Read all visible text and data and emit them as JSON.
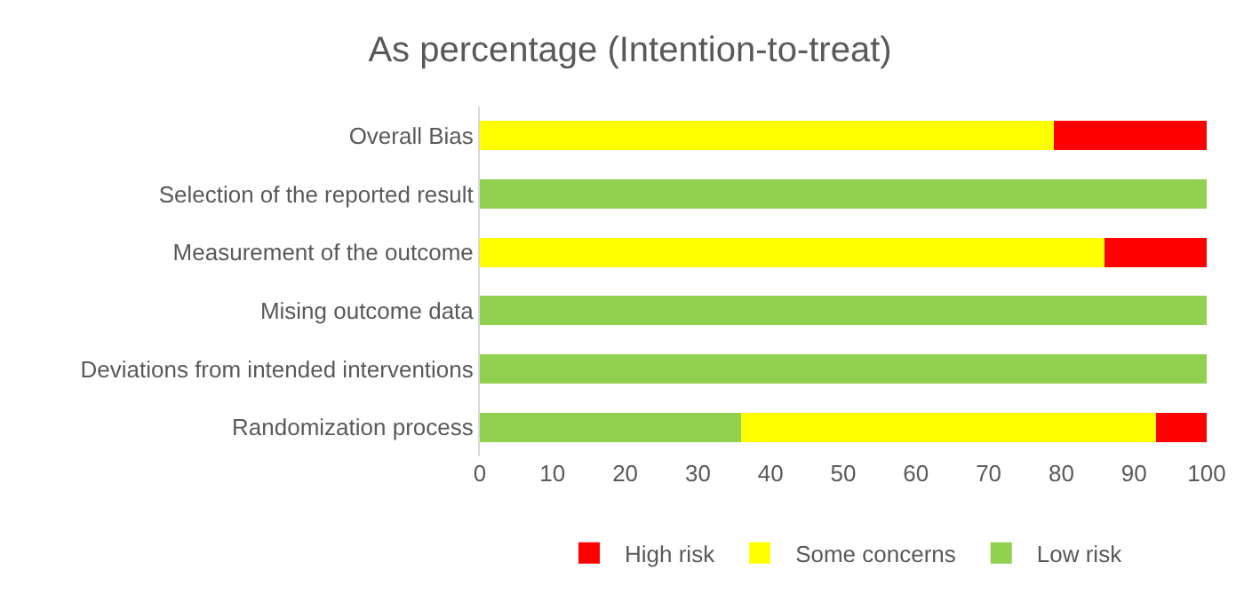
{
  "chart_data": {
    "type": "bar",
    "title": "As percentage (Intention-to-treat)",
    "orientation": "horizontal",
    "stacked": true,
    "categories": [
      "Overall Bias",
      "Selection of the reported result",
      "Measurement of the outcome",
      "Mising outcome data",
      "Deviations from intended interventions",
      "Randomization process"
    ],
    "series": [
      {
        "name": "Low risk",
        "color": "#92d050",
        "values": [
          0,
          100,
          0,
          100,
          100,
          36
        ]
      },
      {
        "name": "Some concerns",
        "color": "#ffff00",
        "values": [
          79,
          0,
          86,
          0,
          0,
          57
        ]
      },
      {
        "name": "High risk",
        "color": "#ff0000",
        "values": [
          21,
          0,
          14,
          0,
          0,
          7
        ]
      }
    ],
    "xlim": [
      0,
      100
    ],
    "xticks": [
      0,
      10,
      20,
      30,
      40,
      50,
      60,
      70,
      80,
      90,
      100
    ],
    "grid": false,
    "legend": "bottom"
  }
}
